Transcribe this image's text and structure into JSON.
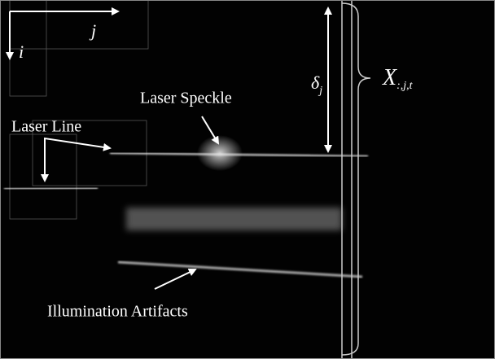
{
  "axes": {
    "horizontal": "j",
    "vertical": "i"
  },
  "labels": {
    "laser_line": "Laser Line",
    "laser_speckle": "Laser Speckle",
    "illumination_artifacts": "Illumination Artifacts"
  },
  "delta": {
    "symbol": "δ",
    "subscript": "j"
  },
  "column": {
    "symbol": "X",
    "subscript": ":,j,t"
  }
}
